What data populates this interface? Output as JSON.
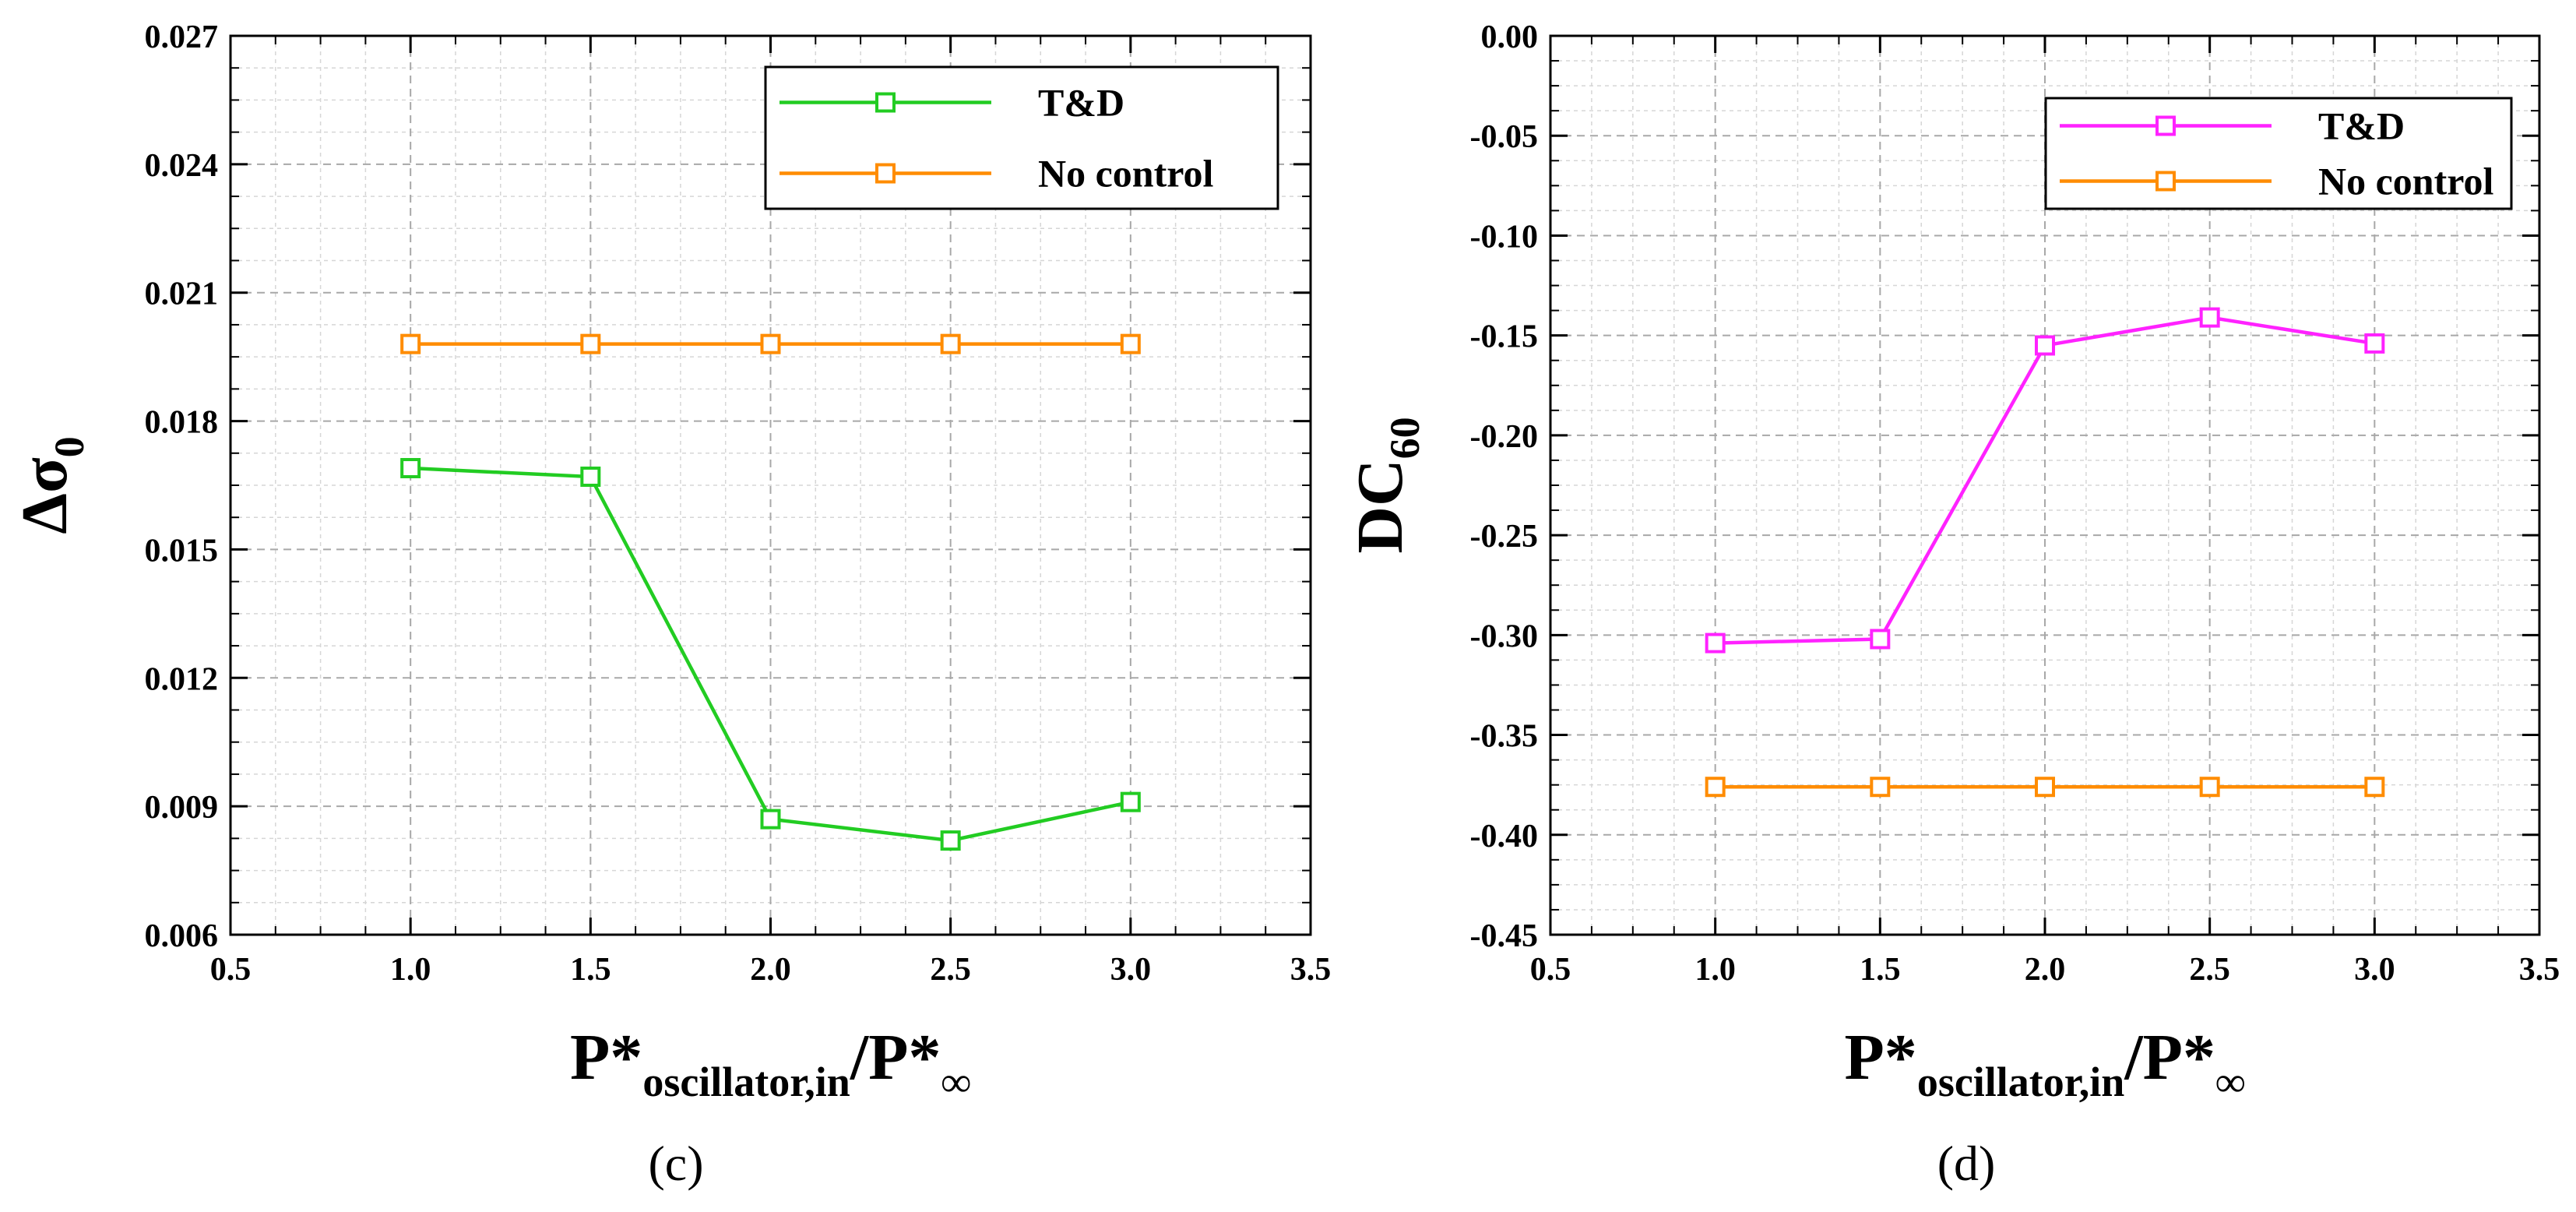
{
  "chart_data": [
    {
      "type": "line",
      "panel_label": "(c)",
      "xlabel": {
        "main": "P*",
        "sub": "oscillator,in",
        "mid": "/P*",
        "sub2": "∞"
      },
      "ylabel": {
        "main": "Δσ",
        "sub": "0"
      },
      "xlim": [
        0.5,
        3.5
      ],
      "ylim": [
        0.006,
        0.027
      ],
      "xticks": [
        "0.5",
        "1.0",
        "1.5",
        "2.0",
        "2.5",
        "3.0",
        "3.5"
      ],
      "yticks": [
        "0.006",
        "0.009",
        "0.012",
        "0.015",
        "0.018",
        "0.021",
        "0.024",
        "0.027"
      ],
      "grid": true,
      "legend_position": "top-right",
      "x": [
        1.0,
        1.5,
        2.0,
        2.5,
        3.0
      ],
      "series": [
        {
          "name": "T&D",
          "color": "#22cc22",
          "marker": "square",
          "values": [
            0.0169,
            0.0167,
            0.0087,
            0.0082,
            0.0091
          ]
        },
        {
          "name": "No control",
          "color": "#ff8c00",
          "marker": "square",
          "values": [
            0.0198,
            0.0198,
            0.0198,
            0.0198,
            0.0198
          ]
        }
      ]
    },
    {
      "type": "line",
      "panel_label": "(d)",
      "xlabel": {
        "main": "P*",
        "sub": "oscillator,in",
        "mid": "/P*",
        "sub2": "∞"
      },
      "ylabel": {
        "main": "DC",
        "sub": "60"
      },
      "xlim": [
        0.5,
        3.5
      ],
      "ylim": [
        -0.45,
        0.0
      ],
      "xticks": [
        "0.5",
        "1.0",
        "1.5",
        "2.0",
        "2.5",
        "3.0",
        "3.5"
      ],
      "yticks": [
        "-0.45",
        "-0.40",
        "-0.35",
        "-0.30",
        "-0.25",
        "-0.20",
        "-0.15",
        "-0.10",
        "-0.05",
        "0.00"
      ],
      "grid": true,
      "legend_position": "top-right",
      "x": [
        1.0,
        1.5,
        2.0,
        2.5,
        3.0
      ],
      "series": [
        {
          "name": "T&D",
          "color": "#ff22ff",
          "marker": "square",
          "values": [
            -0.304,
            -0.302,
            -0.155,
            -0.141,
            -0.154
          ]
        },
        {
          "name": "No control",
          "color": "#ff8c00",
          "marker": "square",
          "values": [
            -0.376,
            -0.376,
            -0.376,
            -0.376,
            -0.376
          ]
        }
      ]
    }
  ]
}
